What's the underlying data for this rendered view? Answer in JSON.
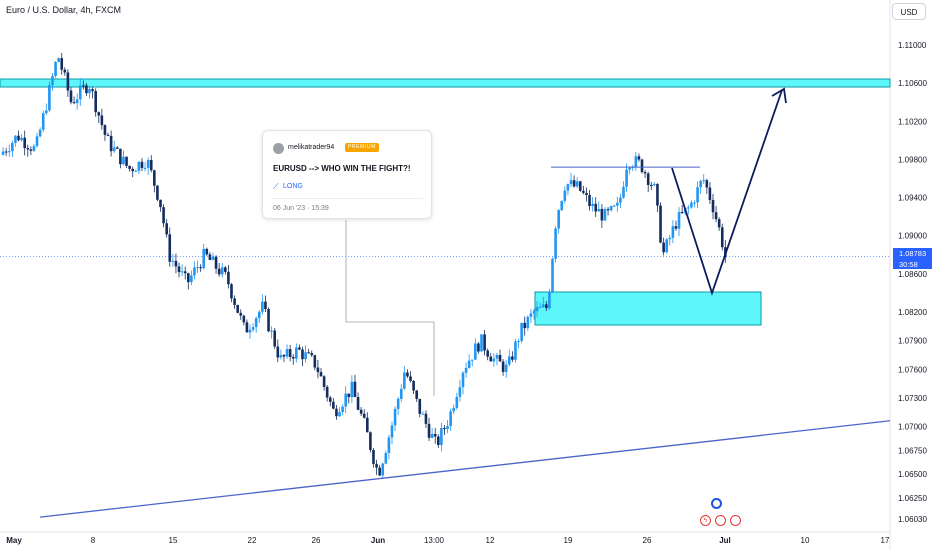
{
  "header": {
    "symbol_title": "Euro / U.S. Dollar, 4h, FXCM",
    "currency_button": "USD"
  },
  "idea": {
    "author": "melikatrader94",
    "badge": "PREMIUM",
    "title": "EURUSD --> WHO WIN THE FIGHT?!",
    "direction": "LONG",
    "date": "06 Jun '23 · 15:39"
  },
  "current_price": {
    "value": "1.08783",
    "countdown": "30:58"
  },
  "colors": {
    "candle": "#2196f3",
    "candle_down": "#142c5e",
    "zone_fill": "#5df6fb",
    "trend_line": "#4a64c8",
    "arrow": "#0d1b5e",
    "price_line": "#2962ff"
  },
  "events": [
    {
      "icon": "economic-event-icon"
    },
    {
      "icon": "dividend-event-icon"
    },
    {
      "icon": "flag-event-icon"
    }
  ],
  "chart_data": {
    "type": "candlestick",
    "title": "Euro / U.S. Dollar, 4h, FXCM",
    "ylim": [
      1.0595,
      1.1135
    ],
    "y_ticks": [
      1.11,
      1.106,
      1.102,
      1.098,
      1.094,
      1.09,
      1.086,
      1.082,
      1.079,
      1.076,
      1.073,
      1.07,
      1.0675,
      1.065,
      1.0625,
      1.0603
    ],
    "y_tick_labels": [
      "1.11000",
      "1.10600",
      "1.10200",
      "1.09800",
      "1.09400",
      "1.09000",
      "1.08600",
      "1.08200",
      "1.07900",
      "1.07600",
      "1.07300",
      "1.07000",
      "1.06750",
      "1.06500",
      "1.06250",
      "1.06030"
    ],
    "x_tick_labels": [
      "May",
      "8",
      "15",
      "22",
      "26",
      "Jun",
      "13:00",
      "12",
      "19",
      "26",
      "Jul",
      "10",
      "17"
    ],
    "last_price": 1.08783,
    "price_path": [
      [
        1.0985,
        0.0
      ],
      [
        1.1005,
        0.02
      ],
      [
        1.099,
        0.04
      ],
      [
        1.105,
        0.055
      ],
      [
        1.109,
        0.065
      ],
      [
        1.104,
        0.08
      ],
      [
        1.106,
        0.1
      ],
      [
        1.1,
        0.12
      ],
      [
        1.097,
        0.145
      ],
      [
        1.098,
        0.165
      ],
      [
        1.0935,
        0.18
      ],
      [
        1.088,
        0.19
      ],
      [
        1.085,
        0.21
      ],
      [
        1.088,
        0.23
      ],
      [
        1.0855,
        0.255
      ],
      [
        1.08,
        0.275
      ],
      [
        1.0825,
        0.295
      ],
      [
        1.077,
        0.315
      ],
      [
        1.078,
        0.335
      ],
      [
        1.0765,
        0.355
      ],
      [
        1.0715,
        0.375
      ],
      [
        1.074,
        0.395
      ],
      [
        1.07,
        0.41
      ],
      [
        1.065,
        0.425
      ],
      [
        1.07,
        0.44
      ],
      [
        1.076,
        0.455
      ],
      [
        1.072,
        0.47
      ],
      [
        1.068,
        0.49
      ],
      [
        1.071,
        0.505
      ],
      [
        1.076,
        0.52
      ],
      [
        1.079,
        0.54
      ],
      [
        1.077,
        0.555
      ],
      [
        1.076,
        0.57
      ],
      [
        1.08,
        0.585
      ],
      [
        1.082,
        0.6
      ],
      [
        1.0825,
        0.615
      ],
      [
        1.092,
        0.625
      ],
      [
        1.0955,
        0.635
      ],
      [
        1.095,
        0.65
      ],
      [
        1.093,
        0.665
      ],
      [
        1.092,
        0.68
      ],
      [
        1.093,
        0.695
      ],
      [
        1.098,
        0.705
      ],
      [
        1.0975,
        0.72
      ],
      [
        1.095,
        0.735
      ],
      [
        1.088,
        0.745
      ],
      [
        1.0915,
        0.76
      ],
      [
        1.093,
        0.775
      ],
      [
        1.096,
        0.79
      ],
      [
        1.0935,
        0.8
      ],
      [
        1.09,
        0.81
      ],
      [
        1.0878,
        0.815
      ]
    ],
    "annotations": {
      "resistance_zone": [
        1.1054,
        1.1062
      ],
      "demand_zone": [
        1.0814,
        1.0845
      ],
      "range_top_line": 1.0972,
      "support_trendline": {
        "start": 1.0605,
        "end": 1.0706
      },
      "projected_path": [
        1.0875,
        1.0845,
        1.1055
      ]
    }
  }
}
